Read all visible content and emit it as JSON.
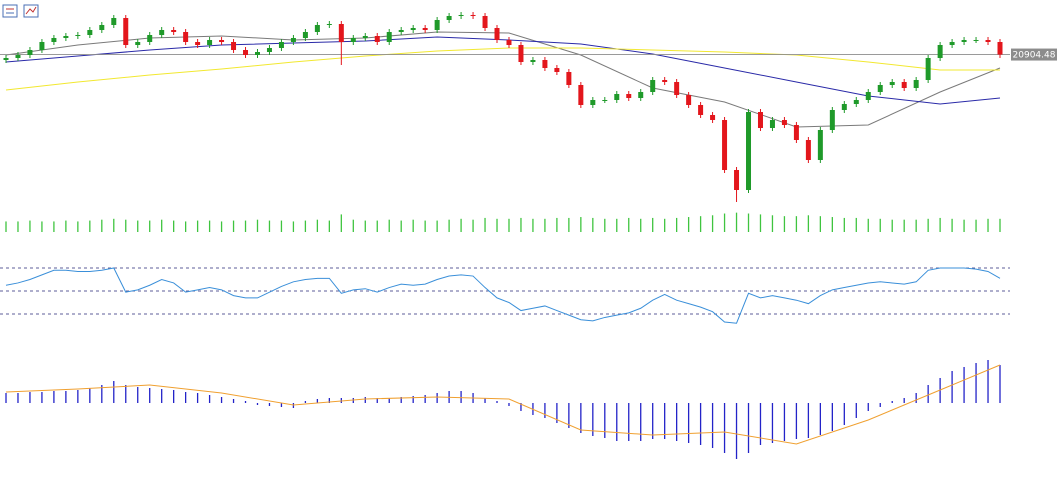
{
  "chart_data": [
    {
      "type": "candlestick",
      "open": [
        20850,
        20870,
        20900,
        20950,
        21030,
        21070,
        21090,
        21100,
        21150,
        21200,
        21270,
        21000,
        21030,
        21100,
        21150,
        21130,
        21030,
        21000,
        21050,
        21030,
        20950,
        20900,
        20930,
        20970,
        21030,
        21070,
        21130,
        21200,
        21210,
        21030,
        21070,
        21090,
        21030,
        21130,
        21150,
        21170,
        21150,
        21250,
        21290,
        21300,
        21290,
        21170,
        21050,
        21000,
        20830,
        20850,
        20770,
        20730,
        20600,
        20400,
        20450,
        20450,
        20510,
        20470,
        20530,
        20650,
        20630,
        20500,
        20400,
        20300,
        20250,
        19750,
        19550,
        20330,
        20170,
        20250,
        20200,
        20050,
        19850,
        20150,
        20350,
        20410,
        20450,
        20530,
        20600,
        20630,
        20570,
        20650,
        20870,
        21000,
        21030,
        21050,
        21050,
        21030
      ],
      "high": [
        20900,
        20930,
        20980,
        21060,
        21100,
        21120,
        21130,
        21180,
        21230,
        21300,
        21300,
        21060,
        21130,
        21180,
        21180,
        21160,
        21060,
        21080,
        21080,
        21060,
        20980,
        20960,
        21000,
        21060,
        21100,
        21160,
        21230,
        21240,
        21240,
        21100,
        21120,
        21120,
        21160,
        21180,
        21200,
        21200,
        21280,
        21320,
        21330,
        21330,
        21320,
        21200,
        21080,
        21030,
        20880,
        20880,
        20800,
        20760,
        20630,
        20480,
        20480,
        20540,
        20540,
        20560,
        20680,
        20680,
        20660,
        20530,
        20430,
        20330,
        20280,
        19780,
        20360,
        20360,
        20280,
        20280,
        20230,
        20080,
        20180,
        20380,
        20440,
        20480,
        20560,
        20630,
        20660,
        20660,
        20680,
        20900,
        21030,
        21060,
        21080,
        21080,
        21080,
        21060
      ],
      "low": [
        20820,
        20840,
        20870,
        20920,
        21000,
        21040,
        21060,
        21070,
        21120,
        21170,
        20970,
        20970,
        21000,
        21070,
        21100,
        21000,
        20970,
        20970,
        21000,
        20920,
        20870,
        20870,
        20900,
        20940,
        21000,
        21040,
        21100,
        21170,
        20800,
        21000,
        21040,
        21000,
        21000,
        21100,
        21120,
        21120,
        21120,
        21220,
        21260,
        21260,
        21140,
        21020,
        20970,
        20800,
        20800,
        20740,
        20700,
        20570,
        20370,
        20370,
        20420,
        20420,
        20440,
        20440,
        20500,
        20600,
        20470,
        20370,
        20270,
        20220,
        19720,
        19430,
        19520,
        20140,
        20140,
        20170,
        20020,
        19820,
        19820,
        20120,
        20320,
        20380,
        20420,
        20500,
        20570,
        20540,
        20540,
        20620,
        20840,
        20970,
        21000,
        21020,
        21000,
        20870
      ],
      "close": [
        20870,
        20900,
        20950,
        21030,
        21070,
        21090,
        21100,
        21150,
        21200,
        21270,
        21000,
        21030,
        21100,
        21150,
        21130,
        21030,
        21000,
        21050,
        21030,
        20950,
        20900,
        20930,
        20970,
        21030,
        21070,
        21130,
        21200,
        21210,
        21030,
        21070,
        21090,
        21030,
        21130,
        21150,
        21170,
        21150,
        21250,
        21290,
        21300,
        21290,
        21170,
        21050,
        21000,
        20830,
        20850,
        20770,
        20730,
        20600,
        20400,
        20450,
        20450,
        20510,
        20470,
        20530,
        20650,
        20630,
        20500,
        20400,
        20300,
        20250,
        19750,
        19550,
        20330,
        20170,
        20250,
        20200,
        20050,
        19850,
        20150,
        20350,
        20410,
        20450,
        20530,
        20600,
        20630,
        20570,
        20650,
        20870,
        21000,
        21030,
        21050,
        21050,
        21030,
        20904.48
      ],
      "up_color": "#1f9a2a",
      "down_color": "#e3161c",
      "ylim": [
        19400,
        21350
      ],
      "series": [
        {
          "color": "#7a7a7a",
          "x": [
            0,
            6,
            12,
            18,
            24,
            30,
            36,
            42,
            48,
            54,
            60,
            66,
            72,
            78,
            83
          ],
          "values": [
            20900,
            21000,
            21070,
            21090,
            21050,
            21070,
            21130,
            21120,
            20900,
            20570,
            20430,
            20180,
            20200,
            20530,
            20770
          ]
        },
        {
          "color": "#2a2aa8",
          "x": [
            0,
            6,
            12,
            18,
            24,
            30,
            36,
            42,
            48,
            54,
            60,
            66,
            72,
            78,
            83
          ],
          "values": [
            20830,
            20890,
            20950,
            21000,
            21020,
            21040,
            21080,
            21050,
            21010,
            20910,
            20770,
            20630,
            20490,
            20410,
            20470
          ]
        },
        {
          "color": "#f2e830",
          "x": [
            0,
            6,
            12,
            18,
            24,
            30,
            36,
            42,
            48,
            54,
            60,
            66,
            72,
            78,
            83
          ],
          "values": [
            20550,
            20630,
            20700,
            20760,
            20830,
            20890,
            20940,
            20970,
            20970,
            20950,
            20930,
            20900,
            20830,
            20750,
            20750
          ]
        }
      ],
      "last_price": 20904.48,
      "last_price_color": "#8c8c8c"
    },
    {
      "type": "bar",
      "color": "#3fc43f",
      "ylim": [
        0,
        25
      ],
      "values": [
        12,
        12,
        13,
        12,
        12,
        13,
        12,
        13,
        14,
        15,
        14,
        13,
        13,
        14,
        13,
        12,
        13,
        13,
        12,
        13,
        13,
        14,
        13,
        13,
        12,
        13,
        14,
        13,
        20,
        14,
        13,
        13,
        14,
        13,
        14,
        13,
        13,
        14,
        15,
        14,
        16,
        15,
        15,
        16,
        15,
        15,
        16,
        16,
        17,
        16,
        15,
        15,
        16,
        15,
        16,
        15,
        16,
        17,
        18,
        19,
        21,
        22,
        21,
        20,
        19,
        18,
        18,
        19,
        18,
        17,
        16,
        16,
        15,
        15,
        14,
        14,
        14,
        15,
        16,
        15,
        14,
        14,
        15,
        15
      ]
    },
    {
      "type": "line",
      "color": "#3a8fd9",
      "ylim": [
        20,
        80
      ],
      "levels": [
        30,
        50,
        70
      ],
      "level_color": "#2a2a7a",
      "values": [
        55,
        57,
        60,
        64,
        68,
        68,
        67,
        67,
        68,
        70,
        49,
        51,
        55,
        60,
        57,
        49,
        51,
        53,
        51,
        46,
        44,
        44,
        49,
        54,
        58,
        60,
        61,
        61,
        48,
        51,
        52,
        49,
        53,
        56,
        55,
        56,
        60,
        63,
        64,
        63,
        53,
        44,
        40,
        33,
        35,
        37,
        33,
        29,
        25,
        24,
        27,
        29,
        31,
        35,
        42,
        47,
        42,
        39,
        36,
        32,
        23,
        22,
        48,
        44,
        46,
        44,
        42,
        39,
        46,
        51,
        53,
        55,
        57,
        58,
        57,
        56,
        58,
        68,
        70,
        70,
        70,
        69,
        67,
        61
      ]
    },
    {
      "type": "bar",
      "color": "#2323c8",
      "ylim": [
        -65,
        50
      ],
      "values": [
        10,
        10,
        11,
        11,
        12,
        12,
        13,
        15,
        18,
        22,
        18,
        16,
        15,
        14,
        13,
        11,
        10,
        8,
        6,
        4,
        2,
        -2,
        -3,
        -4,
        -5,
        2,
        4,
        5,
        5,
        5,
        6,
        5,
        5,
        6,
        7,
        8,
        10,
        12,
        12,
        10,
        5,
        2,
        -3,
        -8,
        -12,
        -15,
        -20,
        -25,
        -30,
        -33,
        -35,
        -38,
        -38,
        -38,
        -36,
        -36,
        -38,
        -40,
        -42,
        -45,
        -50,
        -56,
        -50,
        -42,
        -40,
        -38,
        -36,
        -35,
        -32,
        -28,
        -22,
        -15,
        -8,
        -4,
        2,
        5,
        10,
        18,
        25,
        32,
        36,
        40,
        43,
        38
      ],
      "signal": {
        "color": "#f0a030",
        "x": [
          0,
          6,
          12,
          18,
          24,
          30,
          36,
          42,
          48,
          54,
          60,
          66,
          72,
          78,
          83
        ],
        "values": [
          11,
          14,
          18,
          10,
          -2,
          4,
          6,
          4,
          -27,
          -32,
          -29,
          -41,
          -17,
          13,
          38
        ]
      }
    }
  ]
}
